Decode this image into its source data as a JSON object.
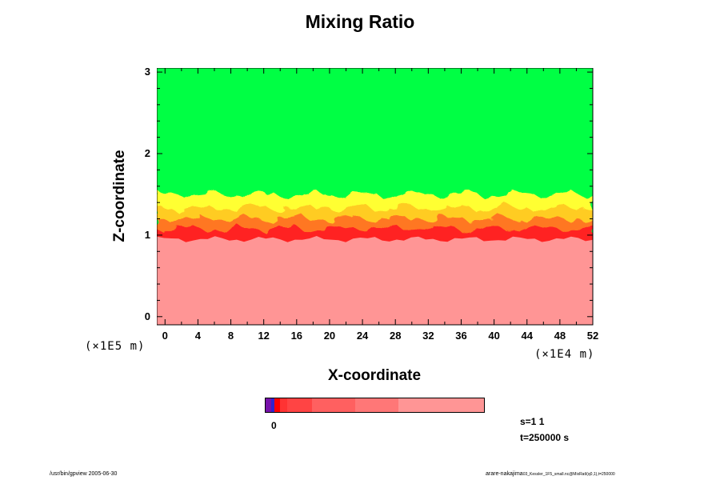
{
  "chart_data": {
    "type": "heatmap",
    "title": "Mixing Ratio",
    "xlabel": "X-coordinate",
    "ylabel": "Z-coordinate",
    "x_scale_label": "(×1E4 m)",
    "y_scale_label": "(×1E5 m)",
    "xlim": [
      -1,
      52
    ],
    "ylim": [
      -0.1,
      3.05
    ],
    "x_ticks": [
      "0",
      "4",
      "8",
      "12",
      "16",
      "20",
      "24",
      "28",
      "32",
      "36",
      "40",
      "44",
      "48",
      "52"
    ],
    "y_ticks": [
      "0",
      "1",
      "2",
      "3"
    ],
    "grid": false,
    "layers": [
      {
        "name": "upper",
        "z_from": 1.5,
        "z_to": 3.05,
        "color": "#00ff44"
      },
      {
        "name": "transition",
        "z_from": 1.0,
        "z_to": 1.5,
        "colors": [
          "#ffff33",
          "#ffcc22",
          "#ff7722",
          "#ff2020"
        ]
      },
      {
        "name": "lower",
        "z_from": -0.1,
        "z_to": 1.0,
        "color": "#ff9595"
      }
    ],
    "colorbar": {
      "zero_label": "0",
      "colors": [
        "#7711aa",
        "#3322cc",
        "#ff0000",
        "#ff3333",
        "#ff4444",
        "#ff6060",
        "#ff7777",
        "#ff9595"
      ],
      "widths": [
        3,
        2,
        3,
        4,
        14,
        24,
        24,
        48
      ]
    },
    "info": [
      "s=1 1",
      "t=250000 s"
    ]
  },
  "footer": {
    "left": "/usr/bin/gpview 2005-06-30",
    "right": "arare-nakajima",
    "right_small": "03_Kessler_1F5_small.nc@MixRatI(q0,1),t=250000"
  }
}
